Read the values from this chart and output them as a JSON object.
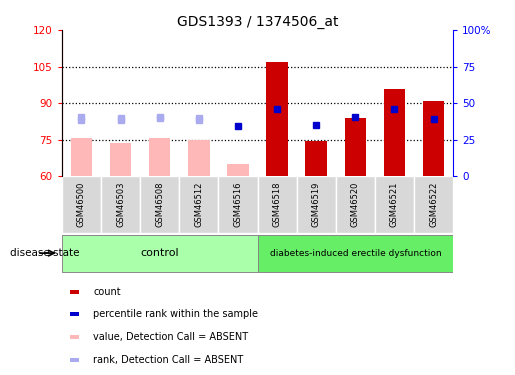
{
  "title": "GDS1393 / 1374506_at",
  "samples": [
    "GSM46500",
    "GSM46503",
    "GSM46508",
    "GSM46512",
    "GSM46516",
    "GSM46518",
    "GSM46519",
    "GSM46520",
    "GSM46521",
    "GSM46522"
  ],
  "bar_values": [
    75.5,
    73.5,
    75.5,
    75.0,
    65.0,
    107.0,
    74.5,
    84.0,
    96.0,
    91.0
  ],
  "bar_absent": [
    true,
    true,
    true,
    true,
    true,
    false,
    false,
    false,
    false,
    false
  ],
  "blue_dot_y": [
    83.0,
    83.0,
    84.0,
    83.0,
    80.5,
    87.5,
    81.0,
    84.5,
    87.5,
    83.5
  ],
  "blue_dot_absent": [
    true,
    true,
    true,
    true,
    false,
    false,
    false,
    false,
    false,
    false
  ],
  "light_dot_y": [
    84.5,
    84.0,
    84.5,
    84.0,
    null,
    null,
    null,
    null,
    null,
    null
  ],
  "ylim_left": [
    60,
    120
  ],
  "ylim_right": [
    0,
    100
  ],
  "yticks_left": [
    60,
    75,
    90,
    105,
    120
  ],
  "yticks_right": [
    0,
    25,
    50,
    75,
    100
  ],
  "ytick_labels_left": [
    "60",
    "75",
    "90",
    "105",
    "120"
  ],
  "ytick_labels_right": [
    "0",
    "25",
    "50",
    "75",
    "100%"
  ],
  "bar_color_red": "#cc0000",
  "bar_color_pink": "#ffb8b8",
  "dot_color_blue": "#0000cc",
  "dot_color_light": "#aaaaee",
  "control_color": "#aaffaa",
  "disease_color": "#66ee66",
  "group_label_control": "control",
  "group_label_disease": "diabetes-induced erectile dysfunction",
  "legend_items": [
    {
      "color": "#cc0000",
      "label": "count"
    },
    {
      "color": "#0000cc",
      "label": "percentile rank within the sample"
    },
    {
      "color": "#ffb8b8",
      "label": "value, Detection Call = ABSENT"
    },
    {
      "color": "#aaaaee",
      "label": "rank, Detection Call = ABSENT"
    }
  ],
  "disease_state_label": "disease state"
}
